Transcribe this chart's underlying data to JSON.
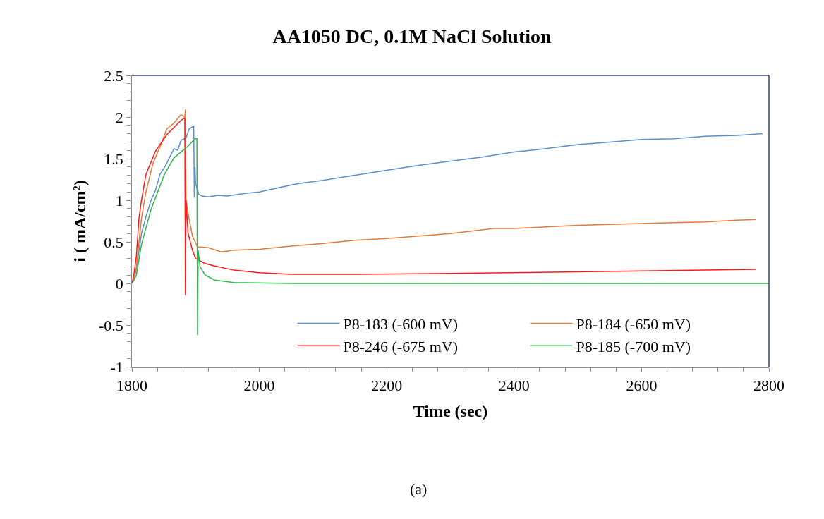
{
  "chart_data": {
    "type": "line",
    "title": "AA1050 DC, 0.1M NaCl Solution",
    "xlabel": "Time (sec)",
    "ylabel": "i ( mA/cm²)",
    "annotations": [
      "(a)"
    ],
    "xlim": [
      1800,
      2800
    ],
    "xticks": [
      1800,
      2000,
      2200,
      2400,
      2600,
      2800
    ],
    "ylim": [
      -1,
      2.5
    ],
    "yticks": [
      -1,
      -0.5,
      0,
      0.5,
      1,
      1.5,
      2,
      2.5
    ],
    "legend": "bottom right",
    "marker": "none",
    "line_style": "solid",
    "series": [
      {
        "name": "P8-183 (-600 mV)",
        "color": "#5b8fc7",
        "x": [
          1800,
          1803,
          1807,
          1815,
          1822,
          1830,
          1837,
          1844,
          1850,
          1855,
          1866,
          1872,
          1877,
          1885,
          1890,
          1897,
          1898,
          1899,
          1900,
          1905,
          1910,
          1920,
          1935,
          1950,
          1975,
          2000,
          2030,
          2060,
          2100,
          2150,
          2200,
          2250,
          2300,
          2350,
          2400,
          2450,
          2500,
          2550,
          2600,
          2650,
          2700,
          2750,
          2790
        ],
        "values": [
          0,
          0.05,
          0.17,
          0.6,
          0.8,
          1.0,
          1.12,
          1.31,
          1.38,
          1.45,
          1.62,
          1.6,
          1.72,
          1.75,
          1.86,
          1.89,
          1.03,
          1.4,
          1.2,
          1.07,
          1.05,
          1.04,
          1.06,
          1.05,
          1.08,
          1.1,
          1.15,
          1.2,
          1.24,
          1.3,
          1.36,
          1.42,
          1.47,
          1.52,
          1.58,
          1.62,
          1.67,
          1.7,
          1.73,
          1.74,
          1.77,
          1.78,
          1.8
        ]
      },
      {
        "name": "P8-184 (-650 mV)",
        "color": "#e07b39",
        "x": [
          1800,
          1803,
          1807,
          1815,
          1822,
          1833,
          1845,
          1855,
          1865,
          1877,
          1883,
          1884,
          1885,
          1888,
          1895,
          1903,
          1920,
          1940,
          1960,
          2000,
          2050,
          2100,
          2150,
          2200,
          2250,
          2300,
          2368,
          2400,
          2450,
          2500,
          2550,
          2600,
          2650,
          2700,
          2750,
          2780
        ],
        "values": [
          0,
          0.05,
          0.2,
          0.78,
          1.1,
          1.44,
          1.66,
          1.86,
          1.92,
          2.03,
          2.0,
          2.09,
          1.0,
          0.85,
          0.57,
          0.44,
          0.43,
          0.38,
          0.4,
          0.41,
          0.45,
          0.48,
          0.52,
          0.54,
          0.57,
          0.6,
          0.66,
          0.66,
          0.68,
          0.7,
          0.71,
          0.72,
          0.73,
          0.74,
          0.76,
          0.77
        ]
      },
      {
        "name": "P8-246 (-675 mV)",
        "color": "#ff1a1a",
        "x": [
          1800,
          1803,
          1807,
          1811,
          1815,
          1822,
          1837,
          1855,
          1877,
          1883,
          1884,
          1885,
          1888,
          1895,
          1900,
          1915,
          1930,
          1960,
          2000,
          2050,
          2147,
          2300,
          2500,
          2700,
          2780
        ],
        "values": [
          0,
          0.1,
          0.33,
          0.78,
          1.0,
          1.31,
          1.59,
          1.79,
          1.96,
          1.99,
          -0.14,
          1.0,
          0.61,
          0.4,
          0.3,
          0.24,
          0.21,
          0.16,
          0.13,
          0.11,
          0.11,
          0.12,
          0.14,
          0.16,
          0.17
        ]
      },
      {
        "name": "P8-185 (-700 mV)",
        "color": "#2eb84e",
        "x": [
          1800,
          1803,
          1807,
          1815,
          1830,
          1851,
          1866,
          1888,
          1899,
          1902,
          1903,
          1904,
          1907,
          1915,
          1930,
          1960,
          2050,
          2800
        ],
        "values": [
          0,
          0.04,
          0.1,
          0.47,
          0.89,
          1.31,
          1.51,
          1.65,
          1.74,
          1.74,
          -0.62,
          0.4,
          0.2,
          0.1,
          0.04,
          0.01,
          0.0,
          0.0
        ]
      }
    ]
  }
}
